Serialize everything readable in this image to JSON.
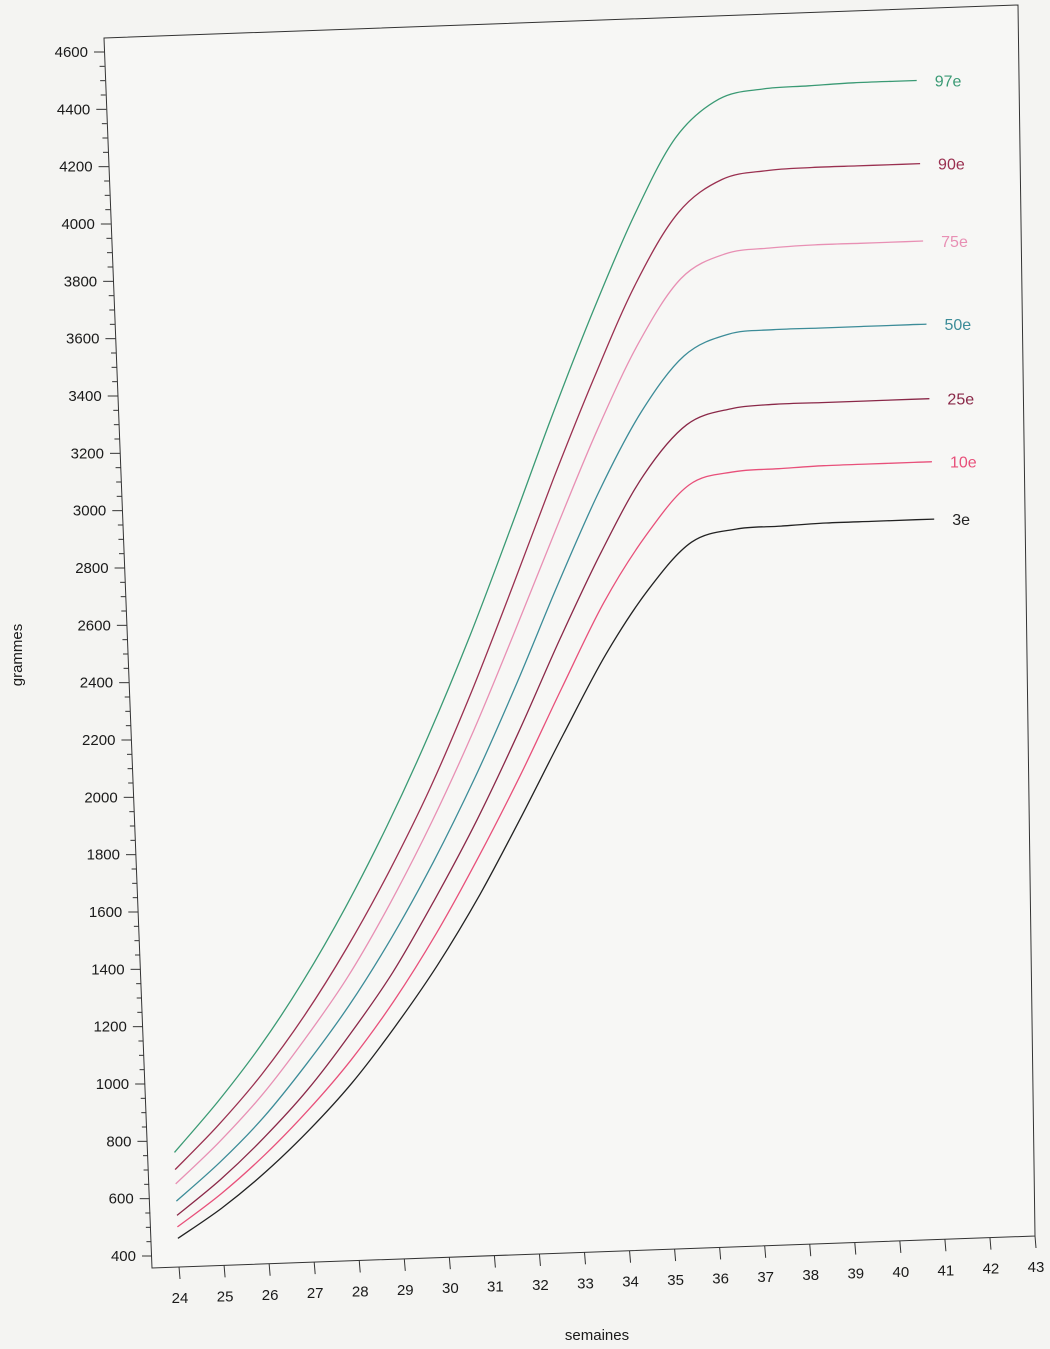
{
  "chart_data": {
    "type": "line",
    "xlabel": "semaines",
    "ylabel": "grammes",
    "xlim": [
      23.4,
      43
    ],
    "ylim": [
      400,
      4600
    ],
    "x_ticks": [
      24,
      25,
      26,
      27,
      28,
      29,
      30,
      31,
      32,
      33,
      34,
      35,
      36,
      37,
      38,
      39,
      40,
      41,
      42,
      43
    ],
    "y_ticks": [
      400,
      600,
      800,
      1000,
      1200,
      1400,
      1600,
      1800,
      2000,
      2200,
      2400,
      2600,
      2800,
      3000,
      3200,
      3400,
      3600,
      3800,
      4000,
      4200,
      4400,
      4600
    ],
    "y_minor_step": 50,
    "grid": false,
    "legend": "labels at right end of each curve",
    "x": [
      24,
      25,
      26,
      27,
      28,
      29,
      30,
      31,
      32,
      33,
      34,
      35,
      36,
      37,
      38,
      39,
      40,
      41,
      41.4
    ],
    "series": [
      {
        "name": "97e",
        "color": "#3a9a74",
        "values": [
          800,
          970,
          1160,
          1380,
          1630,
          1910,
          2220,
          2560,
          2930,
          3310,
          3670,
          4000,
          4270,
          4400,
          4430,
          4435,
          4440,
          4440,
          4440
        ]
      },
      {
        "name": "90e",
        "color": "#9a3050",
        "values": [
          740,
          890,
          1060,
          1260,
          1490,
          1750,
          2040,
          2370,
          2730,
          3100,
          3450,
          3770,
          4010,
          4120,
          4145,
          4150,
          4150,
          4150,
          4150
        ]
      },
      {
        "name": "75e",
        "color": "#e890b4",
        "values": [
          690,
          830,
          990,
          1180,
          1390,
          1640,
          1920,
          2230,
          2570,
          2920,
          3260,
          3560,
          3780,
          3860,
          3875,
          3880,
          3880,
          3880,
          3880
        ]
      },
      {
        "name": "50e",
        "color": "#3c8c98",
        "values": [
          630,
          760,
          910,
          1090,
          1290,
          1520,
          1780,
          2070,
          2390,
          2730,
          3050,
          3320,
          3510,
          3580,
          3590,
          3590,
          3590,
          3590,
          3590
        ]
      },
      {
        "name": "25e",
        "color": "#8a2848",
        "values": [
          580,
          700,
          840,
          1000,
          1190,
          1400,
          1650,
          1920,
          2220,
          2540,
          2840,
          3100,
          3270,
          3320,
          3330,
          3330,
          3330,
          3330,
          3330
        ]
      },
      {
        "name": "10e",
        "color": "#e8507a",
        "values": [
          540,
          650,
          780,
          930,
          1100,
          1300,
          1530,
          1790,
          2070,
          2370,
          2660,
          2890,
          3060,
          3100,
          3105,
          3110,
          3110,
          3110,
          3110
        ]
      },
      {
        "name": "3e",
        "color": "#222222",
        "values": [
          500,
          600,
          720,
          860,
          1020,
          1210,
          1420,
          1660,
          1930,
          2210,
          2480,
          2700,
          2860,
          2900,
          2905,
          2910,
          2910,
          2910,
          2910
        ]
      }
    ]
  }
}
